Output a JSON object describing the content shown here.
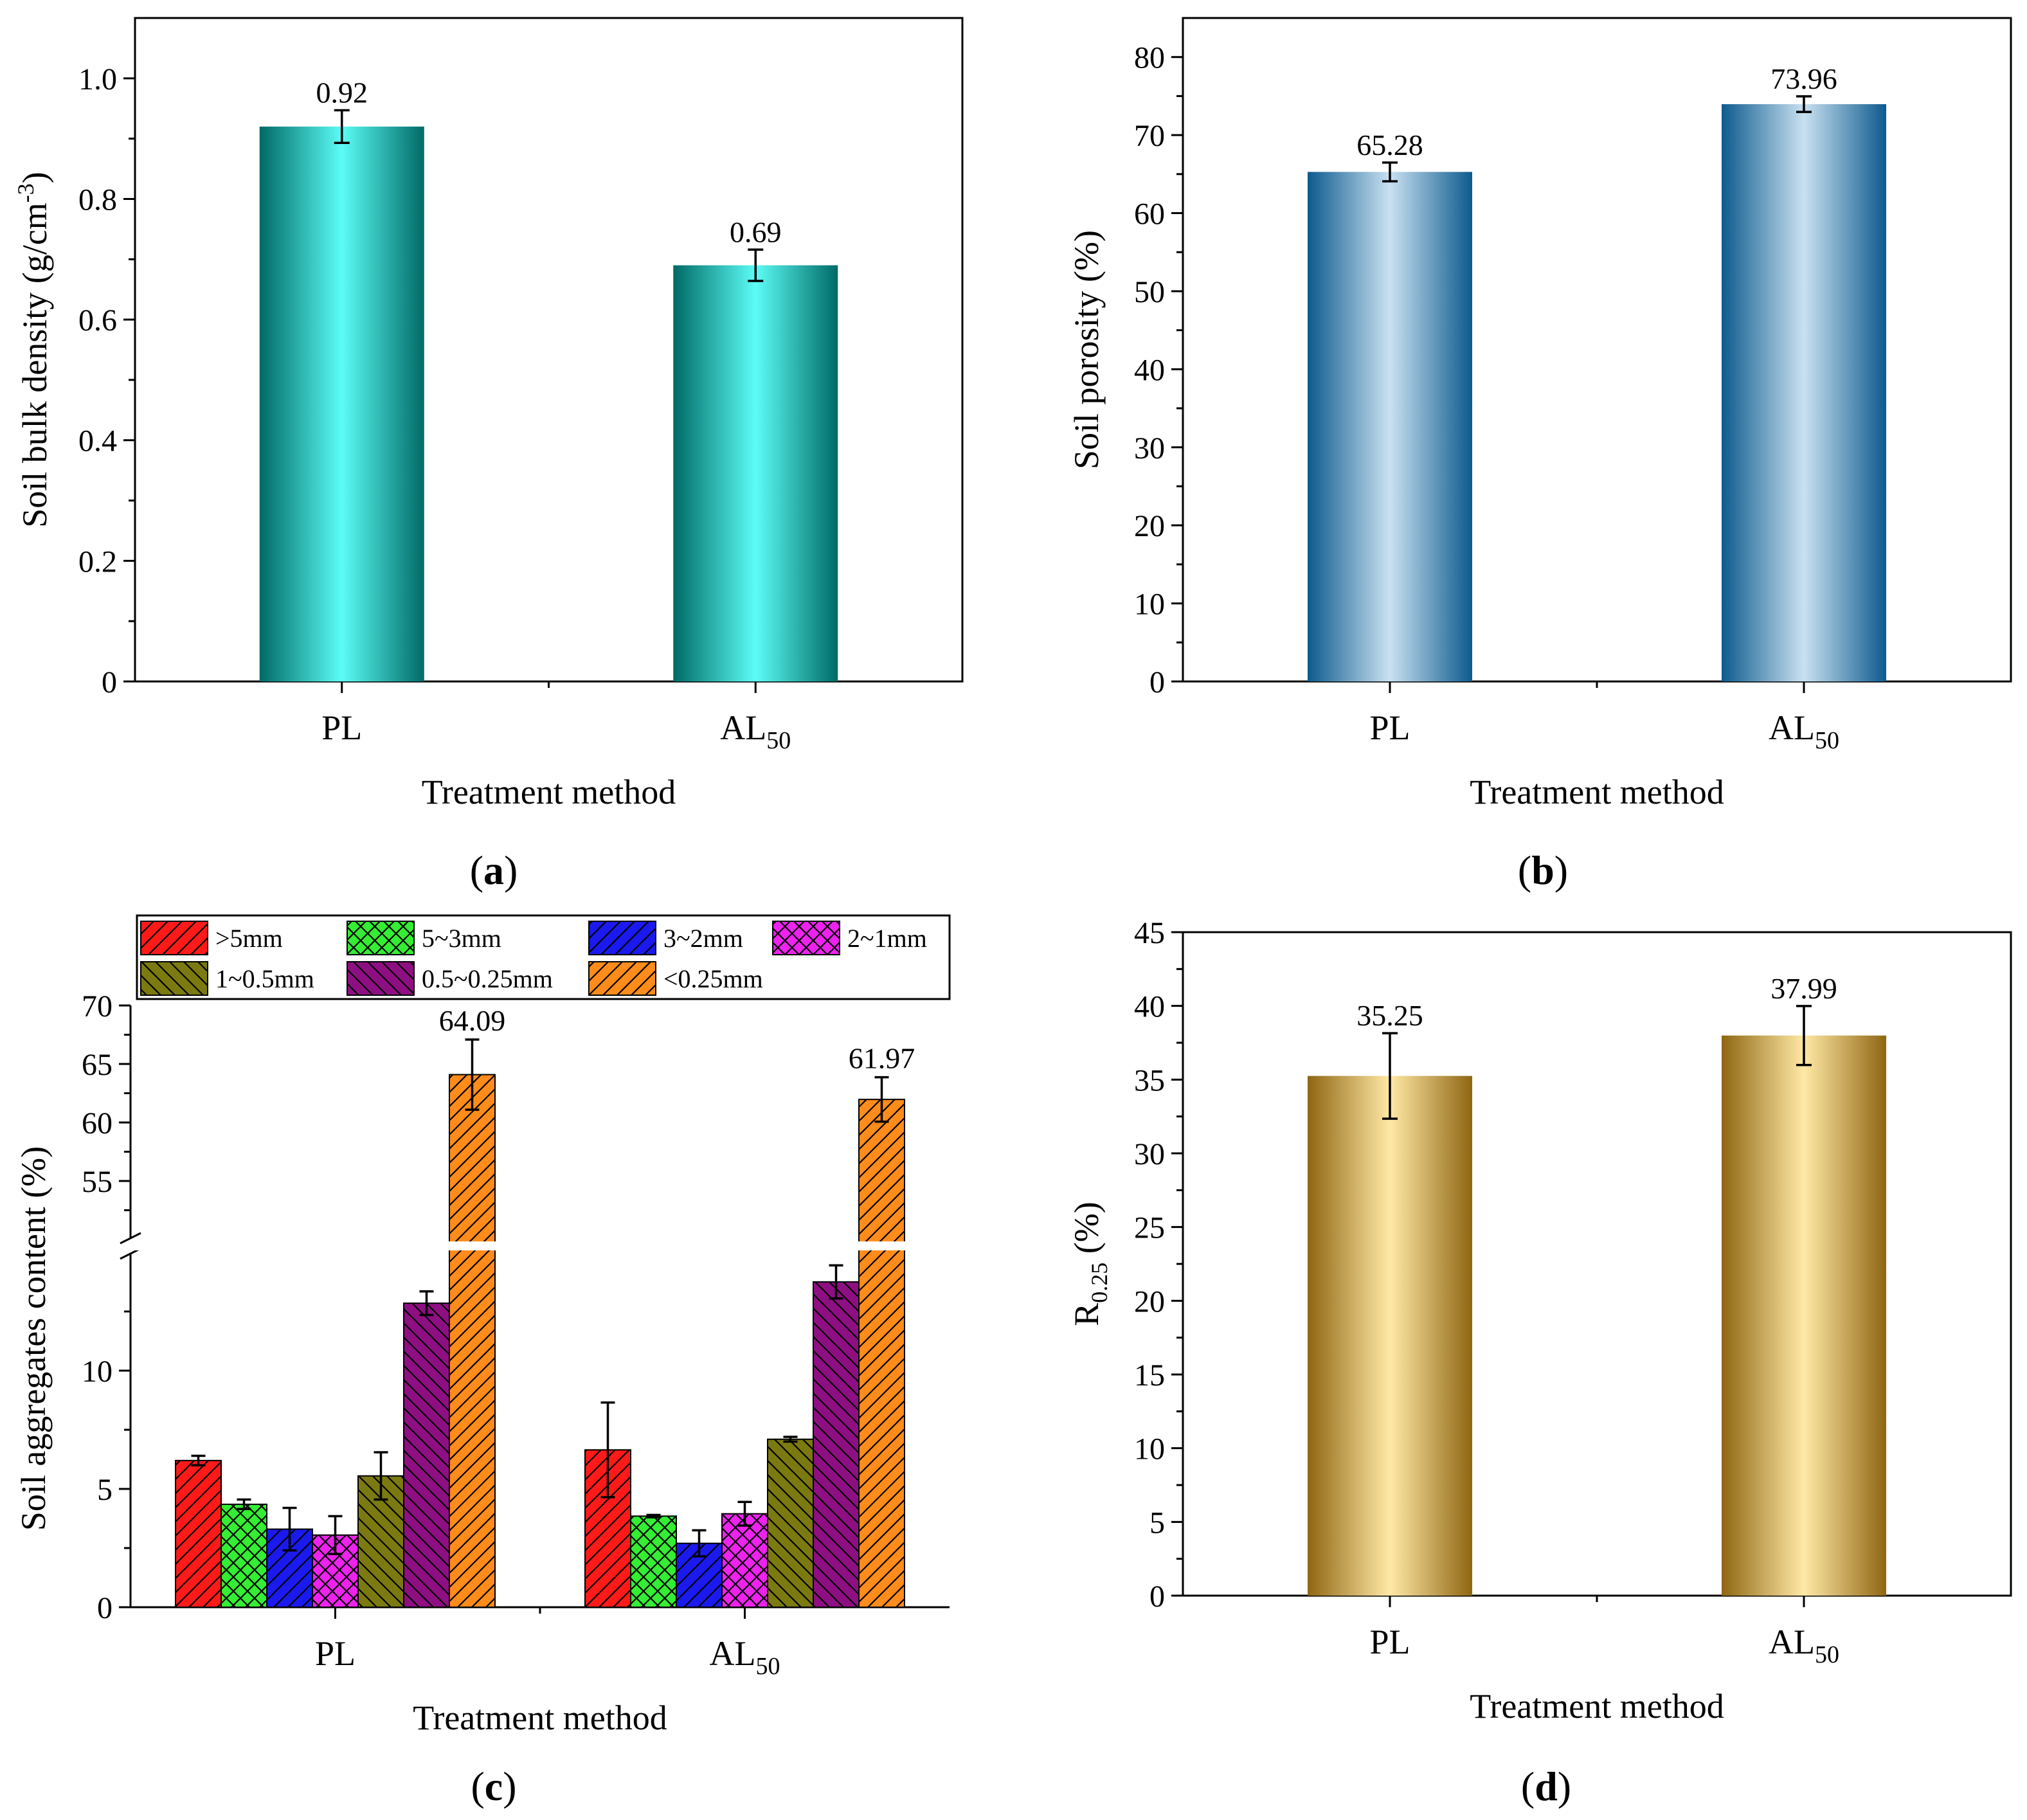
{
  "panels": {
    "a": {
      "label": "(a)"
    },
    "b": {
      "label": "(b)"
    },
    "c": {
      "label": "(c)"
    },
    "d": {
      "label": "(d)"
    }
  },
  "chart_data": [
    {
      "id": "a",
      "type": "bar",
      "categories": [
        "PL",
        "AL50"
      ],
      "category_display": [
        {
          "main": "PL",
          "sub": ""
        },
        {
          "main": "AL",
          "sub": "50"
        }
      ],
      "values": [
        0.92,
        0.69
      ],
      "errors": [
        0.027,
        0.026
      ],
      "value_labels": [
        "0.92",
        "0.69"
      ],
      "ylabel": "Soil bulk density (g/cm-3)",
      "ylabel_parts": {
        "main": "Soil bulk density (g/cm",
        "sup": "-3",
        "end": ")"
      },
      "xlabel": "Treatment method",
      "ylim": [
        0,
        1.1
      ],
      "yticks": [
        0,
        0.2,
        0.4,
        0.6,
        0.8,
        1.0
      ],
      "ytick_labels": [
        "0",
        "0.2",
        "0.4",
        "0.6",
        "0.8",
        "1.0"
      ],
      "grid": false,
      "bar_colors": {
        "edge": "#006a66",
        "center": "#5cfcf6"
      }
    },
    {
      "id": "b",
      "type": "bar",
      "categories": [
        "PL",
        "AL50"
      ],
      "category_display": [
        {
          "main": "PL",
          "sub": ""
        },
        {
          "main": "AL",
          "sub": "50"
        }
      ],
      "values": [
        65.28,
        73.96
      ],
      "errors": [
        1.2,
        1.0
      ],
      "value_labels": [
        "65.28",
        "73.96"
      ],
      "ylabel": "Soil porosity (%)",
      "xlabel": "Treatment method",
      "ylim": [
        0,
        85
      ],
      "yticks": [
        0,
        10,
        20,
        30,
        40,
        50,
        60,
        70,
        80
      ],
      "ytick_labels": [
        "0",
        "10",
        "20",
        "30",
        "40",
        "50",
        "60",
        "70",
        "80"
      ],
      "grid": false,
      "bar_colors": {
        "edge": "#0d5a8e",
        "center": "#c9e1f1"
      }
    },
    {
      "id": "c",
      "type": "bar",
      "categories": [
        "PL",
        "AL50"
      ],
      "category_display": [
        {
          "main": "PL",
          "sub": ""
        },
        {
          "main": "AL",
          "sub": "50"
        }
      ],
      "series": [
        {
          "name": ">5mm",
          "values": [
            6.2,
            6.65
          ],
          "errors": [
            0.2,
            2.0
          ],
          "color": "#ff1a1a",
          "pattern": "diag"
        },
        {
          "name": "5~3mm",
          "values": [
            4.35,
            3.85
          ],
          "errors": [
            0.2,
            0.05
          ],
          "color": "#33ee33",
          "pattern": "cross"
        },
        {
          "name": "3~2mm",
          "values": [
            3.3,
            2.7
          ],
          "errors": [
            0.9,
            0.55
          ],
          "color": "#1a1aee",
          "pattern": "diag"
        },
        {
          "name": "2~1mm",
          "values": [
            3.05,
            3.95
          ],
          "errors": [
            0.8,
            0.5
          ],
          "color": "#ee22ee",
          "pattern": "cross"
        },
        {
          "name": "1~0.5mm",
          "values": [
            5.55,
            7.1
          ],
          "errors": [
            1.0,
            0.1
          ],
          "color": "#7a7a10",
          "pattern": "rdiag"
        },
        {
          "name": "0.5~0.25mm",
          "values": [
            12.85,
            13.75
          ],
          "errors": [
            0.5,
            0.7
          ],
          "color": "#8e0f82",
          "pattern": "rdiag"
        },
        {
          "name": "<0.25mm",
          "values": [
            64.09,
            61.97
          ],
          "errors": [
            3.0,
            1.9
          ],
          "color": "#ff8c1a",
          "pattern": "diag"
        }
      ],
      "value_labels": {
        "series": "<0.25mm",
        "labels": [
          "64.09",
          "61.97"
        ]
      },
      "ylabel": "Soil aggregates content (%)",
      "xlabel": "Treatment method",
      "ylim": [
        0,
        70
      ],
      "axis_break": {
        "lower": [
          0,
          15
        ],
        "upper": [
          50,
          70
        ]
      },
      "yticks": [
        0,
        5,
        10,
        55,
        60,
        65,
        70
      ],
      "ytick_labels": [
        "0",
        "5",
        "10",
        "55",
        "60",
        "65",
        "70"
      ],
      "legend": "top",
      "grid": false
    },
    {
      "id": "d",
      "type": "bar",
      "categories": [
        "PL",
        "AL50"
      ],
      "category_display": [
        {
          "main": "PL",
          "sub": ""
        },
        {
          "main": "AL",
          "sub": "50"
        }
      ],
      "values": [
        35.25,
        37.99
      ],
      "errors": [
        2.9,
        2.0
      ],
      "value_labels": [
        "35.25",
        "37.99"
      ],
      "ylabel": "R0.25 (%)",
      "ylabel_parts": {
        "main": "R",
        "sub": "0.25",
        "end": " (%)"
      },
      "xlabel": "Treatment method",
      "ylim": [
        0,
        45
      ],
      "yticks": [
        0,
        5,
        10,
        15,
        20,
        25,
        30,
        35,
        40,
        45
      ],
      "ytick_labels": [
        "0",
        "5",
        "10",
        "15",
        "20",
        "25",
        "30",
        "35",
        "40",
        "45"
      ],
      "grid": false,
      "bar_colors": {
        "edge": "#8f6612",
        "center": "#ffe9a6"
      }
    }
  ]
}
